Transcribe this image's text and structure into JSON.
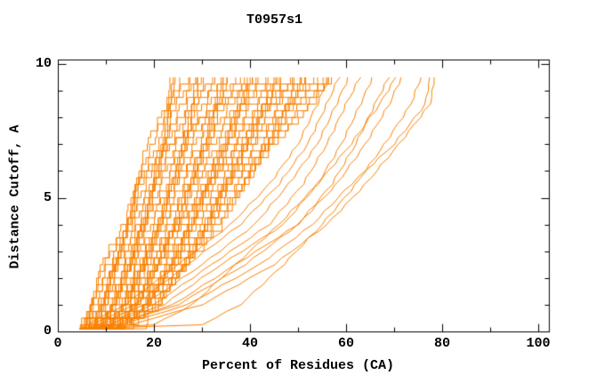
{
  "chart_data": {
    "type": "line",
    "title": "T0957s1",
    "xlabel": "Percent of Residues (CA)",
    "ylabel": "Distance Cutoff, A",
    "xlim": [
      0,
      102.2
    ],
    "ylim": [
      0,
      10.17
    ],
    "x_major_ticks": [
      0,
      20,
      40,
      60,
      80,
      100
    ],
    "x_minor_ticks": [
      10,
      30,
      50,
      70,
      90
    ],
    "y_major_ticks": [
      0,
      5,
      10
    ],
    "y_minor_ticks": [
      1,
      2,
      3,
      4,
      6,
      7,
      8,
      9
    ],
    "grid": false,
    "legend": false,
    "line_color": "#f88000",
    "axis_color": "#000000",
    "background": "#ffffff",
    "cutoff_levels": [
      0.25,
      1,
      2.5,
      4,
      5.5,
      7,
      8.5,
      9.7
    ],
    "ensemble_bundle": {
      "description": "dense bundle of model curves, percent of residues vs distance cutoff",
      "count": 46,
      "style": "step",
      "tip": [
        4.5,
        0.1
      ],
      "left_edge_x": [
        4.5,
        6.5,
        9.5,
        13,
        16,
        19,
        21.5,
        24
      ],
      "right_edge_x": [
        14,
        20,
        27,
        33,
        38.5,
        45,
        51.5,
        58
      ]
    },
    "outlier_series": [
      {
        "style": "smooth",
        "x": [
          6,
          14,
          25,
          36,
          44,
          50,
          54,
          57
        ]
      },
      {
        "style": "smooth",
        "x": [
          7,
          16,
          27,
          38,
          46,
          52,
          56,
          59
        ]
      },
      {
        "style": "smooth",
        "x": [
          8,
          18,
          30,
          41,
          48,
          54,
          58,
          61
        ]
      },
      {
        "style": "smooth",
        "x": [
          9,
          20,
          32,
          44,
          51,
          56,
          60,
          63.5
        ]
      },
      {
        "style": "smooth",
        "x": [
          10,
          22,
          34,
          47,
          54,
          59,
          63,
          66
        ]
      },
      {
        "style": "smooth",
        "x": [
          11,
          24,
          37,
          50,
          57,
          62,
          66,
          69.5
        ]
      },
      {
        "style": "smooth",
        "x": [
          12,
          25,
          39,
          50,
          58,
          64,
          69,
          72
        ]
      },
      {
        "style": "smooth",
        "x": [
          13,
          27,
          42,
          53,
          61,
          70,
          76.5,
          77.5
        ]
      },
      {
        "style": "smooth",
        "x": [
          15,
          30,
          45,
          56,
          64,
          71,
          77.5,
          78.5
        ]
      },
      {
        "style": "smooth",
        "x": [
          20,
          28,
          37,
          46,
          54,
          61,
          67,
          71
        ]
      },
      {
        "style": "smooth",
        "x": [
          30,
          38,
          47,
          55,
          62,
          68,
          73.5,
          76
        ]
      },
      {
        "style": "step",
        "x": [
          15.8,
          15.8,
          15.8,
          15.8,
          15.8,
          23,
          33,
          43
        ]
      },
      {
        "style": "step",
        "x": [
          18.5,
          18.5,
          18.5,
          25,
          31,
          37,
          44,
          50
        ]
      }
    ]
  }
}
